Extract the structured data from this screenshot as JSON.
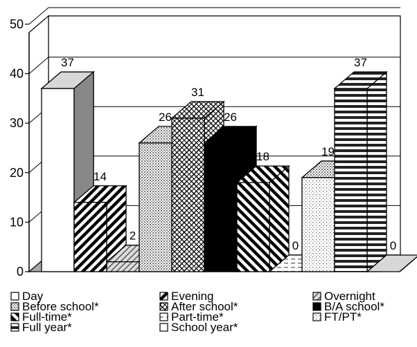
{
  "chart_data": {
    "type": "bar",
    "categories": [
      "Day",
      "Evening",
      "Overnight",
      "Before school*",
      "After school*",
      "B/A school*",
      "Full-time*",
      "Part-time*",
      "FT/PT*",
      "Full year*",
      "School year*"
    ],
    "values": [
      37,
      14,
      2,
      26,
      31,
      26,
      18,
      0,
      19,
      37,
      0
    ],
    "value_labels": [
      "37",
      "14",
      "2",
      "26",
      "31",
      "26",
      "18",
      "0",
      "19",
      "37",
      "0"
    ],
    "ylim": [
      0,
      50
    ],
    "yticks": [
      "0",
      "10",
      "20",
      "30",
      "40",
      "50"
    ],
    "ytick_values": [
      0,
      10,
      20,
      30,
      40,
      50
    ],
    "grid": true,
    "legend_position": "bottom",
    "bar_3d": true
  }
}
